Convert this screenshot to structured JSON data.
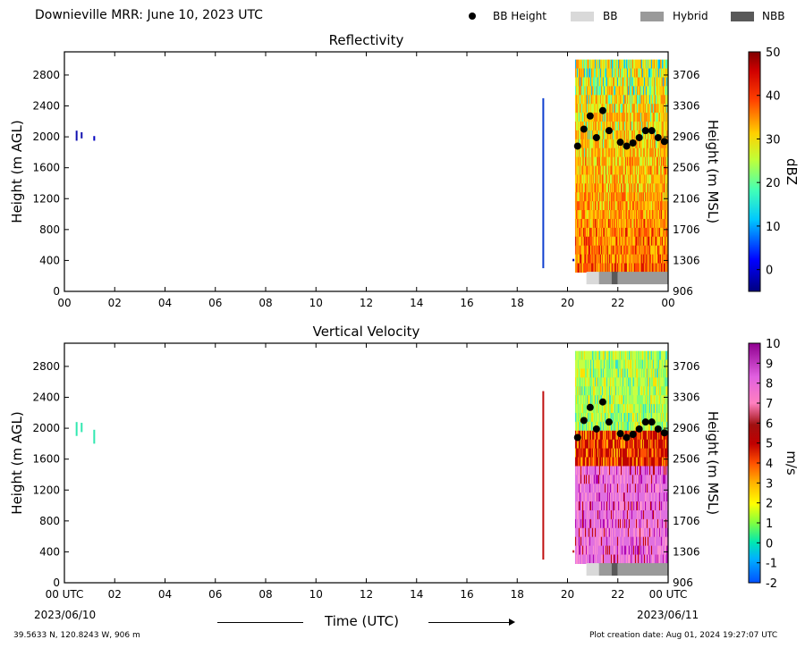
{
  "header": {
    "title": "Downieville MRR:  June 10, 2023 UTC",
    "legend": [
      {
        "label": "BB Height",
        "marker": "dot",
        "color": "#000000"
      },
      {
        "label": "BB",
        "marker": "box",
        "color": "#d9d9d9"
      },
      {
        "label": "Hybrid",
        "marker": "box",
        "color": "#9a9a9a"
      },
      {
        "label": "NBB",
        "marker": "box",
        "color": "#595959"
      }
    ]
  },
  "footer": {
    "location": "39.5633 N, 120.8243 W, 906 m",
    "creation": "Plot creation date: Aug 01, 2024 19:27:07 UTC",
    "xlabel": "Time (UTC)",
    "start_date": "2023/06/10",
    "end_date": "2023/06/11"
  },
  "chart_data": [
    {
      "type": "heatmap",
      "title": "Reflectivity",
      "ylabel_left": "Height (m AGL)",
      "ylabel_right": "Height (m MSL)",
      "yticks_left": [
        0,
        400,
        800,
        1200,
        1600,
        2000,
        2400,
        2800
      ],
      "yticks_right": [
        906,
        1306,
        1706,
        2106,
        2506,
        2906,
        3306,
        3706
      ],
      "ylim": [
        0,
        3100
      ],
      "xticks": [
        "00",
        "02",
        "04",
        "06",
        "08",
        "10",
        "12",
        "14",
        "16",
        "18",
        "20",
        "22",
        "00"
      ],
      "xlim": [
        0,
        24
      ],
      "colorbar": {
        "label": "dBZ",
        "range": [
          -5,
          50
        ],
        "ticks": [
          0,
          10,
          20,
          30,
          40,
          50
        ]
      },
      "data_region": {
        "time_start": 20.3,
        "time_end": 24,
        "height_min": 250,
        "height_max": 3000
      },
      "bb_height": {
        "times": [
          20.4,
          20.65,
          20.9,
          21.15,
          21.4,
          21.65,
          22.1,
          22.35,
          22.6,
          22.85,
          23.1,
          23.35,
          23.6,
          23.85
        ],
        "heights": [
          1880,
          2100,
          2270,
          1990,
          2340,
          2080,
          1930,
          1880,
          1920,
          1990,
          2080,
          2080,
          1990,
          1940
        ]
      },
      "bb_bar": [
        {
          "start": 20.75,
          "end": 21.25,
          "kind": "BB"
        },
        {
          "start": 21.25,
          "end": 21.75,
          "kind": "Hybrid"
        },
        {
          "start": 21.75,
          "end": 22.0,
          "kind": "NBB"
        },
        {
          "start": 22.0,
          "end": 24.0,
          "kind": "Hybrid"
        }
      ]
    },
    {
      "type": "heatmap",
      "title": "Vertical Velocity",
      "ylabel_left": "Height (m AGL)",
      "ylabel_right": "Height (m MSL)",
      "yticks_left": [
        0,
        400,
        800,
        1200,
        1600,
        2000,
        2400,
        2800
      ],
      "yticks_right": [
        906,
        1306,
        1706,
        2106,
        2506,
        2906,
        3306,
        3706
      ],
      "ylim": [
        0,
        3100
      ],
      "xticks": [
        "00 UTC",
        "02",
        "04",
        "06",
        "08",
        "10",
        "12",
        "14",
        "16",
        "18",
        "20",
        "22",
        "00 UTC"
      ],
      "xlim": [
        0,
        24
      ],
      "colorbar": {
        "label": "m/s",
        "range": [
          -2,
          10
        ],
        "ticks": [
          -2,
          -1,
          0,
          1,
          2,
          3,
          4,
          5,
          6,
          7,
          8,
          9,
          10
        ]
      },
      "data_region": {
        "time_start": 20.3,
        "time_end": 24,
        "height_min": 250,
        "height_max": 3000
      },
      "bb_height": {
        "times": [
          20.4,
          20.65,
          20.9,
          21.15,
          21.4,
          21.65,
          22.1,
          22.35,
          22.6,
          22.85,
          23.1,
          23.35,
          23.6,
          23.85
        ],
        "heights": [
          1880,
          2100,
          2270,
          1990,
          2340,
          2080,
          1930,
          1880,
          1920,
          1990,
          2080,
          2080,
          1990,
          1940
        ]
      },
      "bb_bar": [
        {
          "start": 20.75,
          "end": 21.25,
          "kind": "BB"
        },
        {
          "start": 21.25,
          "end": 21.75,
          "kind": "Hybrid"
        },
        {
          "start": 21.75,
          "end": 22.0,
          "kind": "NBB"
        },
        {
          "start": 22.0,
          "end": 24.0,
          "kind": "Hybrid"
        }
      ]
    }
  ]
}
